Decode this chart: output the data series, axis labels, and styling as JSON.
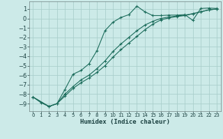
{
  "xlabel": "Humidex (Indice chaleur)",
  "bg_color": "#cceae8",
  "grid_color": "#aacfcc",
  "line_color": "#1a6b5a",
  "xlim": [
    -0.5,
    23.5
  ],
  "ylim": [
    -9.8,
    1.8
  ],
  "xticks": [
    0,
    1,
    2,
    3,
    4,
    5,
    6,
    7,
    8,
    9,
    10,
    11,
    12,
    13,
    14,
    15,
    16,
    17,
    18,
    19,
    20,
    21,
    22,
    23
  ],
  "yticks": [
    1,
    0,
    -1,
    -2,
    -3,
    -4,
    -5,
    -6,
    -7,
    -8,
    -9
  ],
  "curve1_x": [
    0,
    1,
    2,
    3,
    4,
    5,
    6,
    7,
    8,
    9,
    10,
    11,
    12,
    13,
    14,
    15,
    16,
    17,
    18,
    19,
    20,
    21,
    22,
    23
  ],
  "curve1_y": [
    -8.3,
    -8.9,
    -9.3,
    -9.0,
    -7.5,
    -5.9,
    -5.5,
    -4.8,
    -3.4,
    -1.3,
    -0.4,
    0.1,
    0.4,
    1.3,
    0.7,
    0.3,
    0.3,
    0.35,
    0.35,
    0.4,
    -0.2,
    1.05,
    1.1,
    1.05
  ],
  "curve2_x": [
    0,
    2,
    3,
    4,
    5,
    6,
    7,
    8,
    9,
    10,
    11,
    12,
    13,
    14,
    15,
    16,
    17,
    18,
    19,
    20,
    21,
    22,
    23
  ],
  "curve2_y": [
    -8.3,
    -9.3,
    -9.0,
    -8.0,
    -7.2,
    -6.5,
    -6.0,
    -5.3,
    -4.5,
    -3.5,
    -2.7,
    -2.0,
    -1.3,
    -0.7,
    -0.3,
    0.0,
    0.15,
    0.25,
    0.35,
    0.5,
    0.7,
    0.9,
    1.0
  ],
  "curve3_x": [
    0,
    2,
    3,
    4,
    5,
    6,
    7,
    8,
    9,
    10,
    11,
    12,
    13,
    14,
    15,
    16,
    17,
    18,
    19,
    20,
    21,
    22,
    23
  ],
  "curve3_y": [
    -8.3,
    -9.3,
    -9.0,
    -8.2,
    -7.4,
    -6.8,
    -6.3,
    -5.7,
    -5.0,
    -4.1,
    -3.3,
    -2.6,
    -1.9,
    -1.2,
    -0.6,
    -0.15,
    0.05,
    0.2,
    0.3,
    0.5,
    0.7,
    0.9,
    1.0
  ]
}
